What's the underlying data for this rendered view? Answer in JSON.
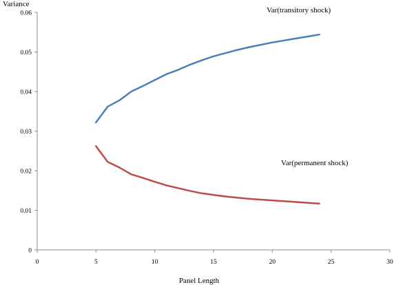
{
  "chart_data": {
    "type": "line",
    "title": "",
    "xlabel": "Panel Length",
    "ylabel": "Variance",
    "xlim": [
      0,
      30
    ],
    "ylim": [
      0,
      0.06
    ],
    "x_ticks": [
      "0",
      "5",
      "10",
      "15",
      "20",
      "25",
      "30"
    ],
    "y_ticks": [
      "0",
      "0.01",
      "0.02",
      "0.03",
      "0.04",
      "0.05",
      "0.06"
    ],
    "grid": false,
    "legend": "none",
    "series": [
      {
        "name": "Var(transitory shock)",
        "color": "#4a7ebb",
        "x": [
          5,
          6,
          7,
          8,
          9,
          10,
          11,
          12,
          13,
          14,
          15,
          16,
          17,
          18,
          19,
          20,
          21,
          22,
          23,
          24
        ],
        "values": [
          0.0322,
          0.0362,
          0.0378,
          0.04,
          0.0414,
          0.0429,
          0.0444,
          0.0455,
          0.0468,
          0.0479,
          0.0489,
          0.0497,
          0.0505,
          0.0512,
          0.0518,
          0.0524,
          0.0529,
          0.0534,
          0.0539,
          0.0544
        ]
      },
      {
        "name": "Var(permanent shock)",
        "color": "#be4b48",
        "x": [
          5,
          6,
          7,
          8,
          9,
          10,
          11,
          12,
          13,
          14,
          15,
          16,
          17,
          18,
          19,
          20,
          21,
          22,
          23,
          24
        ],
        "values": [
          0.0262,
          0.0222,
          0.0208,
          0.0191,
          0.0182,
          0.0172,
          0.0163,
          0.0156,
          0.0149,
          0.0143,
          0.0139,
          0.0135,
          0.0132,
          0.0129,
          0.0127,
          0.0125,
          0.0123,
          0.0121,
          0.0119,
          0.0117
        ]
      }
    ]
  }
}
